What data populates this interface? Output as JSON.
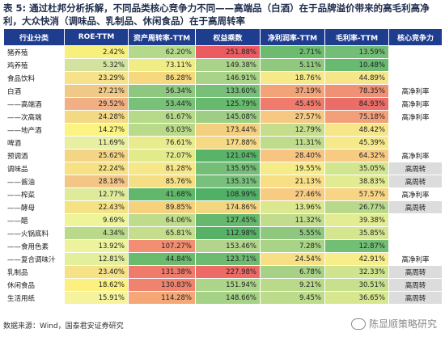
{
  "title": "表 5: 通过杜邦分析拆解，不同品类核心竞争力不同——高端品（白酒）在于品牌溢价带来的高毛利高净利，大众快消（调味品、乳制品、休闲食品）在于高周转率",
  "headers": [
    "行业分类",
    "ROE-TTM",
    "资产周转率-TTM",
    "权益乘数",
    "净利润率-TTM",
    "毛利率-TTM",
    "核心竞争力"
  ],
  "rows": [
    {
      "name": "猪养殖",
      "roe": "2.42%",
      "turn": "62.20%",
      "eq": "251.88%",
      "net": "2.71%",
      "gross": "13.59%",
      "core": ""
    },
    {
      "name": "鸡养殖",
      "roe": "5.32%",
      "turn": "73.11%",
      "eq": "149.38%",
      "net": "5.11%",
      "gross": "10.48%",
      "core": ""
    },
    {
      "name": "食品饮料",
      "roe": "23.29%",
      "turn": "86.28%",
      "eq": "146.91%",
      "net": "18.76%",
      "gross": "44.89%",
      "core": ""
    },
    {
      "name": "白酒",
      "roe": "27.21%",
      "turn": "56.34%",
      "eq": "133.60%",
      "net": "37.19%",
      "gross": "78.35%",
      "core": "高净利率"
    },
    {
      "name": "——高端酒",
      "roe": "29.52%",
      "turn": "53.44%",
      "eq": "125.79%",
      "net": "45.45%",
      "gross": "84.93%",
      "core": "高净利率"
    },
    {
      "name": "——次高端",
      "roe": "24.28%",
      "turn": "61.67%",
      "eq": "145.08%",
      "net": "27.57%",
      "gross": "75.18%",
      "core": "高净利率"
    },
    {
      "name": "——地产酒",
      "roe": "14.27%",
      "turn": "63.03%",
      "eq": "173.44%",
      "net": "12.79%",
      "gross": "48.42%",
      "core": ""
    },
    {
      "name": "啤酒",
      "roe": "11.69%",
      "turn": "76.61%",
      "eq": "177.88%",
      "net": "11.31%",
      "gross": "45.39%",
      "core": ""
    },
    {
      "name": "预调酒",
      "roe": "25.62%",
      "turn": "72.07%",
      "eq": "121.04%",
      "net": "28.40%",
      "gross": "64.32%",
      "core": "高净利率"
    },
    {
      "name": "调味品",
      "roe": "22.24%",
      "turn": "81.28%",
      "eq": "135.95%",
      "net": "19.55%",
      "gross": "35.05%",
      "core": "高周转"
    },
    {
      "name": "——酱油",
      "roe": "28.18%",
      "turn": "85.76%",
      "eq": "135.31%",
      "net": "21.13%",
      "gross": "38.83%",
      "core": "高周转"
    },
    {
      "name": "——榨菜",
      "roe": "12.77%",
      "turn": "41.68%",
      "eq": "108.99%",
      "net": "27.46%",
      "gross": "57.57%",
      "core": "高净利率"
    },
    {
      "name": "——酵母",
      "roe": "22.43%",
      "turn": "89.85%",
      "eq": "174.86%",
      "net": "13.96%",
      "gross": "26.77%",
      "core": "高周转"
    },
    {
      "name": "——醋",
      "roe": "9.69%",
      "turn": "64.06%",
      "eq": "127.45%",
      "net": "11.32%",
      "gross": "39.38%",
      "core": ""
    },
    {
      "name": "——火锅底料",
      "roe": "4.34%",
      "turn": "65.81%",
      "eq": "112.98%",
      "net": "5.55%",
      "gross": "35.85%",
      "core": ""
    },
    {
      "name": "——食用色素",
      "roe": "13.92%",
      "turn": "107.27%",
      "eq": "153.46%",
      "net": "7.28%",
      "gross": "12.87%",
      "core": ""
    },
    {
      "name": "——复合调味汁",
      "roe": "12.81%",
      "turn": "44.84%",
      "eq": "123.71%",
      "net": "24.54%",
      "gross": "42.91%",
      "core": "高净利率"
    },
    {
      "name": "乳制品",
      "roe": "23.40%",
      "turn": "131.38%",
      "eq": "227.98%",
      "net": "6.78%",
      "gross": "32.33%",
      "core": "高周转"
    },
    {
      "name": "休闲食品",
      "roe": "18.62%",
      "turn": "130.83%",
      "eq": "151.94%",
      "net": "9.21%",
      "gross": "30.51%",
      "core": "高周转"
    },
    {
      "name": "生活用纸",
      "roe": "15.91%",
      "turn": "114.28%",
      "eq": "148.66%",
      "net": "9.45%",
      "gross": "36.65%",
      "core": "高周转"
    }
  ],
  "colors": {
    "roe": [
      "#f8f07c",
      "#d3e39f",
      "#f5e28a",
      "#f0c987",
      "#f0b083",
      "#f3d985",
      "#fbf382",
      "#e8efa0",
      "#f3d585",
      "#f6e185",
      "#f3c687",
      "#dfea9a",
      "#f5e285",
      "#eef49a",
      "#b9d98b",
      "#edf39c",
      "#e4ef9c",
      "#f5e287",
      "#fbf080",
      "#f6f39f"
    ],
    "turn": [
      "#b4d98a",
      "#f0ed87",
      "#f6d87f",
      "#8dc780",
      "#79c079",
      "#b7d98a",
      "#b9da8b",
      "#e9ec8e",
      "#e2eb8c",
      "#f6e788",
      "#f6de84",
      "#61b86a",
      "#f6d27e",
      "#bfdb8c",
      "#c5dd8d",
      "#f28e72",
      "#6abb6e",
      "#ee7b6c",
      "#f0836f",
      "#f5a877"
    ],
    "eq": [
      "#eb5b62",
      "#a8d388",
      "#a8d388",
      "#78c07a",
      "#66b96d",
      "#9ece85",
      "#f3d080",
      "#f6d984",
      "#59b468",
      "#74be77",
      "#78c07b",
      "#50b066",
      "#f3d680",
      "#65b86d",
      "#57b267",
      "#b2d58b",
      "#6cbb71",
      "#ec6b67",
      "#add58a",
      "#a6d287"
    ],
    "net": [
      "#6cbb6e",
      "#90c97e",
      "#f6e989",
      "#f3a378",
      "#ef7b6c",
      "#f6c983",
      "#c6dd8c",
      "#bfdc8c",
      "#f7c482",
      "#f6eb89",
      "#f8de84",
      "#f7cc82",
      "#dce88f",
      "#c0dc8c",
      "#8ec87e",
      "#a9d387",
      "#f6df85",
      "#a7d187",
      "#b9da8b",
      "#bcdb8b"
    ],
    "gross": [
      "#73be76",
      "#68ba70",
      "#f6e589",
      "#f09075",
      "#ea6d68",
      "#f2a07a",
      "#f7e58a",
      "#f6e98a",
      "#f7cb82",
      "#d2e58f",
      "#e1eb92",
      "#f7d584",
      "#b8d98c",
      "#e3ec92",
      "#d5e690",
      "#72be75",
      "#f7ee89",
      "#d0e48f",
      "#c6e08d",
      "#d6e790"
    ]
  },
  "source": "数据来源：Wind，国泰君安证券研究",
  "watermark": "陈显顺策略研究",
  "icons": {
    "watermark": "wechat-icon"
  }
}
